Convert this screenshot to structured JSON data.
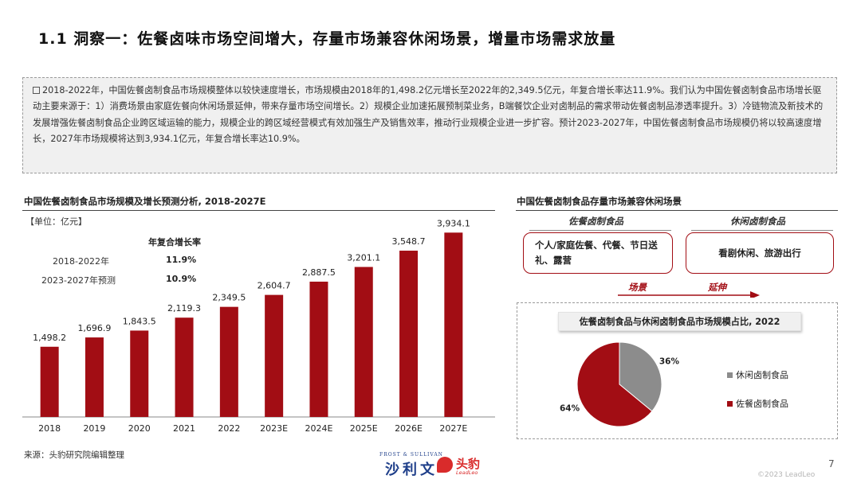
{
  "page": {
    "title": "1.1 洞察一：佐餐卤味市场空间增大，存量市场兼容休闲场景，增量市场需求放量",
    "page_number": "7",
    "copyright": "©2023 LeadLeo"
  },
  "summary": {
    "text": "2018-2022年，中国佐餐卤制食品市场规模整体以较快速度增长，市场规模由2018年的1,498.2亿元增长至2022年的2,349.5亿元，年复合增长率达11.9%。我们认为中国佐餐卤制食品市场增长驱动主要来源于：1）消费场景由家庭佐餐向休闲场景延伸，带来存量市场空间增长。2）规模企业加速拓展预制菜业务，B端餐饮企业对卤制品的需求带动佐餐卤制品渗透率提升。3）冷链物流及新技术的发展增强佐餐卤制食品企业跨区域运输的能力，规模企业的跨区域经营模式有效加强生产及销售效率，推动行业规模企业进一步扩容。预计2023-2027年，中国佐餐卤制食品市场规模仍将以较高速度增长，2027年市场规模将达到3,934.1亿元，年复合增长率达10.9%。"
  },
  "left_chart": {
    "title": "中国佐餐卤制食品市场规模及增长预测分析, 2018-2027E",
    "unit": "【单位：亿元】",
    "cagr": {
      "header": "年复合增长率",
      "rows": [
        {
          "label": "2018-2022年",
          "value": "11.9%"
        },
        {
          "label": "2023-2027年预测",
          "value": "10.9%"
        }
      ]
    },
    "source": "来源：头豹研究院编辑整理"
  },
  "chart_data": [
    {
      "type": "bar",
      "title": "中国佐餐卤制食品市场规模及增长预测分析, 2018-2027E",
      "ylabel": "【单位：亿元】",
      "categories": [
        "2018",
        "2019",
        "2020",
        "2021",
        "2022",
        "2023E",
        "2024E",
        "2025E",
        "2026E",
        "2027E"
      ],
      "values": [
        1498.2,
        1696.9,
        1843.5,
        2119.3,
        2349.5,
        2604.7,
        2887.5,
        3201.1,
        3548.7,
        3934.1
      ],
      "value_labels": [
        "1,498.2",
        "1,696.9",
        "1,843.5",
        "2,119.3",
        "2,349.5",
        "2,604.7",
        "2,887.5",
        "3,201.1",
        "3,548.7",
        "3,934.1"
      ],
      "ylim": [
        0,
        4500
      ],
      "grid": false,
      "bar_color": "#a20d14"
    },
    {
      "type": "pie",
      "title": "佐餐卤制食品与休闲卤制食品市场规模占比, 2022",
      "slices": [
        {
          "label": "休闲卤制食品",
          "value": 36,
          "display": "36%",
          "color": "#8c8c8c"
        },
        {
          "label": "佐餐卤制食品",
          "value": 64,
          "display": "64%",
          "color": "#a20d14"
        }
      ],
      "legend": "right"
    }
  ],
  "right_panel": {
    "title": "中国佐餐卤制食品存量市场兼容休闲场景",
    "left_header": "佐餐卤制食品",
    "right_header": "休闲卤制食品",
    "left_scene": "个人/家庭佐餐、代餐、节日送礼、露营",
    "right_scene": "看剧休闲、旅游出行",
    "extend_word_1": "场景",
    "extend_word_2": "延伸",
    "pie_title": "佐餐卤制食品与休闲卤制食品市场规模占比, 2022",
    "accent_color": "#a20d14"
  },
  "logos": {
    "frost_small": "FROST & SULLIVAN",
    "frost_big": "沙利文",
    "leadleo_cn": "头豹",
    "leadleo_en": "LeadLeo"
  }
}
